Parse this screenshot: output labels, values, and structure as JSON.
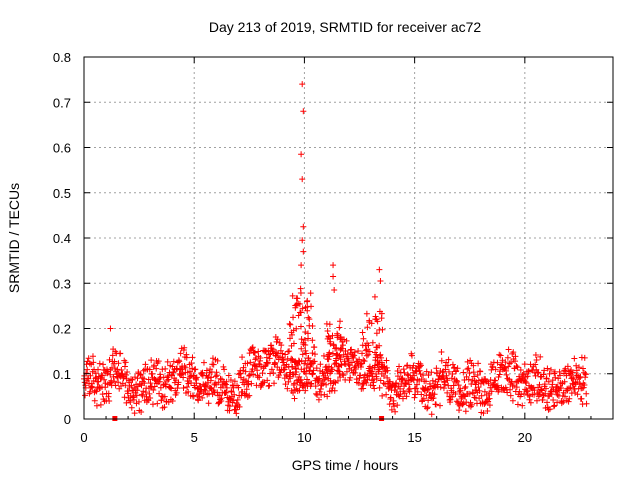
{
  "chart_data": {
    "type": "scatter",
    "title": "Day 213 of 2019, SRMTID for receiver ac72",
    "xlabel": "GPS time / hours",
    "ylabel": "SRMTID / TECUs",
    "xlim": [
      0,
      24
    ],
    "ylim": [
      0,
      0.8
    ],
    "x_ticks": [
      0,
      5,
      10,
      15,
      20
    ],
    "x_tick_labels": [
      "0",
      "5",
      "10",
      "15",
      "20"
    ],
    "y_ticks": [
      0,
      0.1,
      0.2,
      0.3,
      0.4,
      0.5,
      0.6,
      0.7,
      0.8
    ],
    "y_tick_labels": [
      "0",
      "0.1",
      "0.2",
      "0.3",
      "0.4",
      "0.5",
      "0.6",
      "0.7",
      "0.8"
    ],
    "grid": true,
    "marker": "+",
    "series": [
      {
        "name": "SRMTID",
        "color": "#ff0000",
        "x_range": [
          0,
          22.8
        ],
        "baseline_mean": 0.08,
        "spread": 0.04,
        "peaks": [
          {
            "x": 9.9,
            "y": 0.74
          },
          {
            "x": 9.95,
            "y": 0.68
          },
          {
            "x": 9.85,
            "y": 0.585
          },
          {
            "x": 9.9,
            "y": 0.53
          },
          {
            "x": 9.95,
            "y": 0.425
          },
          {
            "x": 9.9,
            "y": 0.395
          },
          {
            "x": 9.95,
            "y": 0.37
          },
          {
            "x": 9.85,
            "y": 0.34
          },
          {
            "x": 11.3,
            "y": 0.34
          },
          {
            "x": 11.3,
            "y": 0.315
          },
          {
            "x": 11.35,
            "y": 0.285
          },
          {
            "x": 13.4,
            "y": 0.33
          },
          {
            "x": 13.45,
            "y": 0.305
          },
          {
            "x": 13.2,
            "y": 0.27
          },
          {
            "x": 1.2,
            "y": 0.2
          }
        ],
        "gaps": [
          1.4,
          13.5
        ]
      }
    ]
  }
}
